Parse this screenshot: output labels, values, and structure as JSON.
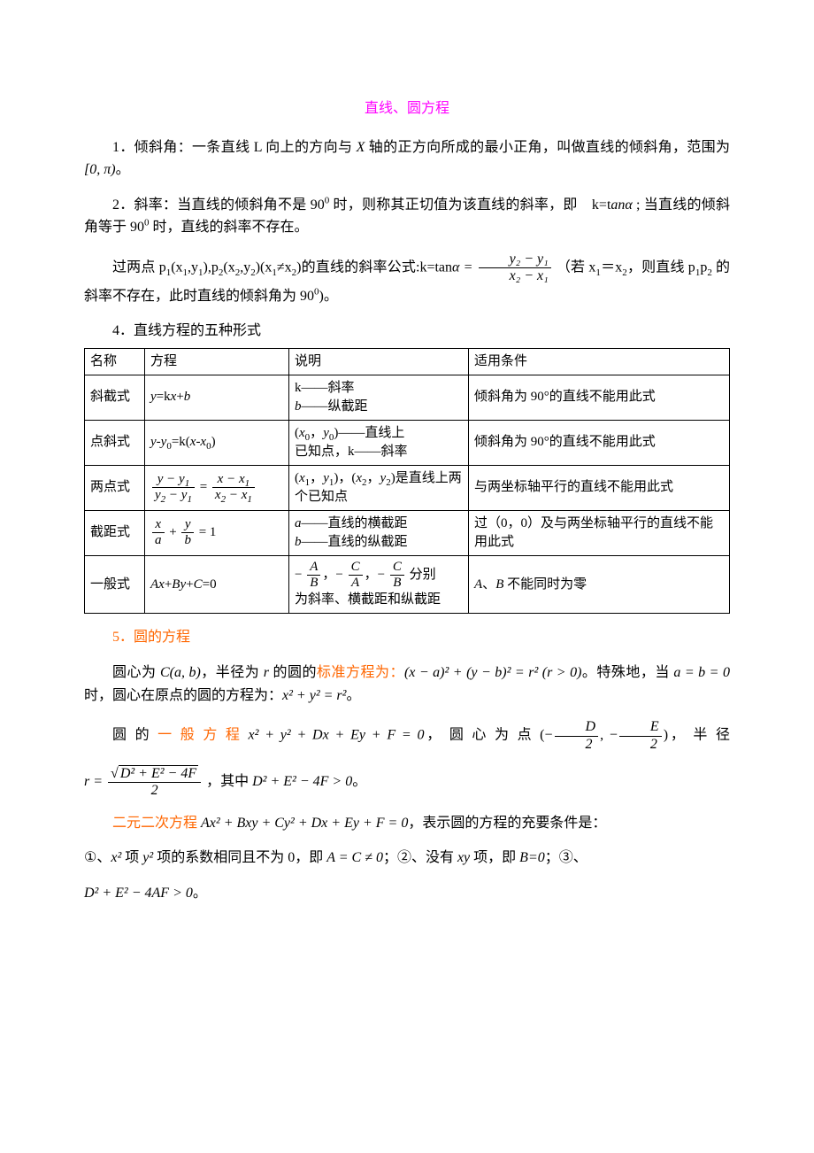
{
  "colors": {
    "title": "#ff00ff",
    "accent": "#ff6600",
    "text": "#000000",
    "border": "#000000",
    "background": "#ffffff"
  },
  "typography": {
    "body_font": "SimSun",
    "body_size_pt": 12,
    "title_size_pt": 12
  },
  "title": "直线、圆方程",
  "p1_a": "1．倾斜角：一条直线 L 向上的方向与 ",
  "p1_b": " 轴的正方向所成的最小正角，叫做直线的倾斜角，范围为",
  "p1_c": "。",
  "interval": "[0, π)",
  "X": "X",
  "p2_a": "2．斜率：当直线的倾斜角不是 90",
  "p2_b": " 时，则称其正切值为该直线的斜率，即　k=t",
  "p2_c": " ; 当直线的倾斜角等于 90",
  "p2_d": " 时，直线的斜率不存在。",
  "tan_alpha": "anα",
  "sup0": "0",
  "p3_a": "过两点 p",
  "p3_b": "(x",
  "p3_c": ",y",
  "p3_d": "),p",
  "p3_e": "(x",
  "p3_f": ",y",
  "p3_g": ")(x",
  "p3_h": "≠x",
  "p3_i": ")的直线的斜率公式:k=tan",
  "p3_j": "（若 x",
  "p3_k": "＝x",
  "p3_l": "，则直线 p",
  "p3_m": "p",
  "p3_n": " 的斜率不存在，此时直线的倾斜角为 90",
  "p3_o": ")。",
  "alpha_eq": "α =",
  "slope_num": "y₂ − y₁",
  "slope_den": "x₂ − x₁",
  "sec4": "4．直线方程的五种形式",
  "table": {
    "header": [
      "名称",
      "方程",
      "说明",
      "适用条件"
    ],
    "rows": [
      {
        "name": "斜截式",
        "eq_html": "<span class=\"italic\">y</span>=k<span class=\"italic\">x</span>+<span class=\"italic\">b</span>",
        "desc_html": "k——斜率<br><span class=\"italic\">b</span>——纵截距",
        "cond": "倾斜角为 90°的直线不能用此式"
      },
      {
        "name": "点斜式",
        "eq_html": "<span class=\"italic\">y-y</span><sub>0</sub>=k(<span class=\"italic\">x-x</span><sub>0</sub>)",
        "desc_html": "(<span class=\"italic\">x</span><sub>0</sub>，<span class=\"italic\">y</span><sub>0</sub>)——直线上<br>已知点，k——斜率",
        "cond": "倾斜角为 90°的直线不能用此式"
      },
      {
        "name": "两点式",
        "eq_html": "<span class=\"frac\"><span class=\"num\">y − y<sub>1</sub></span><span class=\"den\">y<sub>2</sub> − y<sub>1</sub></span></span> = <span class=\"frac\"><span class=\"num\">x − x<sub>1</sub></span><span class=\"den\">x<sub>2</sub> − x<sub>1</sub></span></span>",
        "desc_html": "(<span class=\"italic\">x</span><sub>1</sub>，<span class=\"italic\">y</span><sub>1</sub>)，(<span class=\"italic\">x</span><sub>2</sub>，<span class=\"italic\">y</span><sub>2</sub>)是直线上两个已知点",
        "cond": "与两坐标轴平行的直线不能用此式"
      },
      {
        "name": "截距式",
        "eq_html": "<span class=\"frac\"><span class=\"num\">x</span><span class=\"den\">a</span></span> + <span class=\"frac\"><span class=\"num\">y</span><span class=\"den\">b</span></span> = 1",
        "desc_html": "<span class=\"italic\">a</span>——直线的横截距<br><span class=\"italic\">b</span>——直线的纵截距",
        "cond": "过（0，0）及与两坐标轴平行的直线不能用此式"
      },
      {
        "name": "一般式",
        "eq_html": "<span class=\"italic\">Ax</span>+<span class=\"italic\">By</span>+<span class=\"italic\">C</span>=0",
        "desc_html": "− <span class=\"frac\"><span class=\"num\">A</span><span class=\"den\">B</span></span>，− <span class=\"frac\"><span class=\"num\">C</span><span class=\"den\">A</span></span>，− <span class=\"frac\"><span class=\"num\">C</span><span class=\"den\">B</span></span> 分别<br>为斜率、横截距和纵截距",
        "cond_html": "<span class=\"italic\">A</span>、<span class=\"italic\">B</span> 不能同时为零"
      }
    ]
  },
  "sec5": "5．圆的方程",
  "p5a_a": "圆心为 ",
  "p5a_b": "，半径为 ",
  "p5a_c": " 的圆的",
  "p5a_std": "标准方程为：",
  "p5a_eq": "(x − a)² + (y − b)² = r² (r > 0)",
  "p5a_d": "。特殊地，当 ",
  "p5a_e": " 时，圆心在原点的圆的方程为：",
  "p5a_eq2": "x² + y² = r²",
  "p5a_f": "。",
  "Cab": "C(a, b)",
  "r": "r",
  "ab0": "a = b = 0",
  "p5b_a": "圆 的 ",
  "p5b_gen": "一 般 方 程",
  "p5b_eq": "x² + y² + Dx + Ey + F = 0",
  "p5b_b": "， 圆 心 为 点 ",
  "center_x": "D",
  "center_y": "E",
  "center_den": "2",
  "p5b_c": "， 半 径",
  "p5c_a": "，其中 ",
  "disc": "D² + E² − 4F > 0",
  "p5c_b": "。",
  "radicand": "D² + E² − 4F",
  "r_eq": "r =",
  "p6_a": "二元二次方程",
  "p6_eq": "Ax² + Bxy + Cy² + Dx + Ey + F = 0",
  "p6_b": "，表示圆的方程的充要条件是：",
  "p7_a": "①、",
  "p7_b": " 项 ",
  "p7_c": " 项的系数相同且不为 0，即 ",
  "p7_eq1": "A = C ≠ 0",
  "p7_d": "；②、没有 ",
  "p7_e": " 项，即 ",
  "p7_eq2": "B=0",
  "p7_f": "；③、",
  "x2": "x²",
  "y2": "y²",
  "xy": "xy",
  "p8_eq": "D² + E² − 4AF > 0",
  "p8_b": "。"
}
